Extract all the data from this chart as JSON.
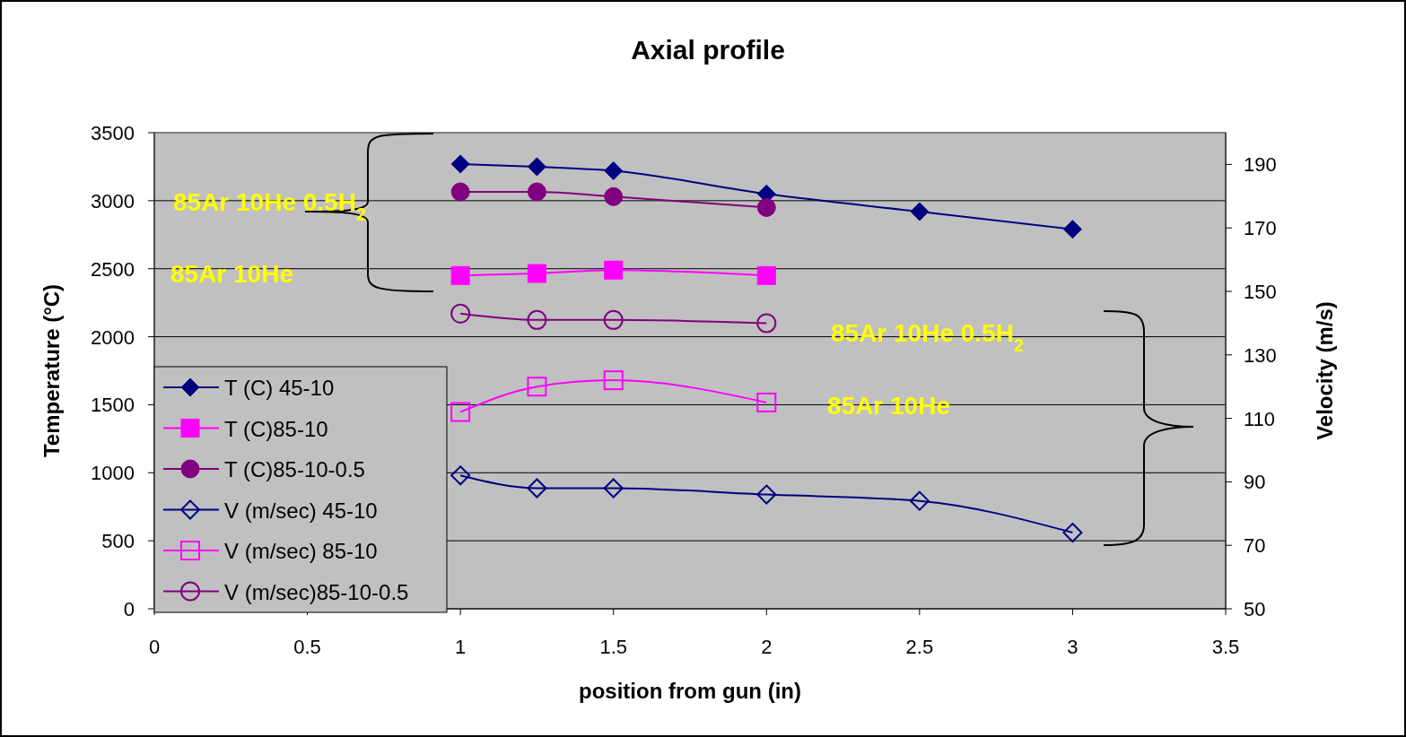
{
  "chart_data": {
    "type": "line",
    "title": "Axial profile",
    "xlabel": "position from gun (in)",
    "ylabel": "Temperature (°C)",
    "y2label": "Velocity (m/s)",
    "xlim": [
      0,
      3.5
    ],
    "xticks": [
      0,
      0.5,
      1,
      1.5,
      2,
      2.5,
      3,
      3.5
    ],
    "ylim": [
      0,
      3500
    ],
    "yticks": [
      0,
      500,
      1000,
      1500,
      2000,
      2500,
      3000,
      3500
    ],
    "y2lim": [
      50,
      200
    ],
    "y2ticks": [
      50,
      70,
      90,
      110,
      130,
      150,
      170,
      190
    ],
    "grid": "y",
    "legend": "bottom left",
    "annotations": [
      "85Ar 10He 0.5H$_{2}$",
      "85Ar 10He",
      "85Ar 10He 0.5H$_{2}$",
      "85Ar 10He"
    ],
    "series": [
      {
        "name": "T (C) 45-10",
        "color": "#000080",
        "marker": "diamond",
        "x": [
          1,
          1.25,
          1.5,
          2,
          2.5,
          3
        ],
        "values": [
          3270,
          3250,
          3220,
          3050,
          2920,
          2790
        ]
      },
      {
        "name": "T (C)85-10",
        "color": "#ff00ff",
        "marker": "square",
        "x": [
          1,
          1.25,
          1.5,
          2
        ],
        "values": [
          2450,
          2465,
          2490,
          2450
        ]
      },
      {
        "name": "T (C)85-10-0.5",
        "color": "#800080",
        "marker": "circle",
        "x": [
          1,
          1.25,
          1.5,
          2
        ],
        "values": [
          3065,
          3065,
          3030,
          2950
        ]
      },
      {
        "name": "V (m/sec) 45-10",
        "color": "#000080",
        "marker": "diamond",
        "axis": "y2",
        "x": [
          1,
          1.25,
          1.5,
          2,
          2.5,
          3
        ],
        "values": [
          92,
          88,
          88,
          86,
          84,
          74
        ]
      },
      {
        "name": "V (m/sec) 85-10",
        "color": "#ff00ff",
        "marker": "square",
        "axis": "y2",
        "x": [
          1,
          1.25,
          1.5,
          2
        ],
        "values": [
          112,
          120,
          122,
          115
        ]
      },
      {
        "name": "V (m/sec)85-10-0.5",
        "color": "#800080",
        "marker": "circle",
        "axis": "y2",
        "x": [
          1,
          1.25,
          1.5,
          2
        ],
        "values": [
          143,
          141,
          141,
          140
        ]
      }
    ]
  }
}
